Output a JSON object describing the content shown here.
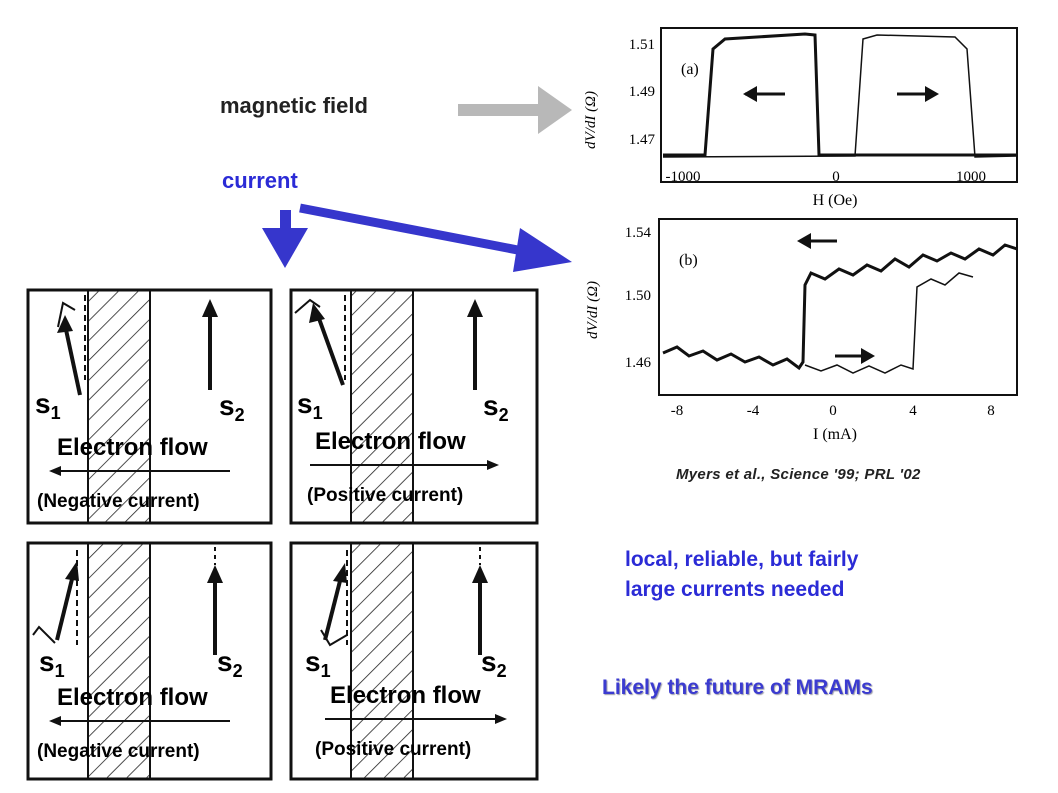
{
  "labels": {
    "magnetic_field": "magnetic field",
    "current": "current"
  },
  "citation": "Myers et al., Science '99; PRL '02",
  "note": [
    "local,  reliable, but fairly",
    "large currents needed"
  ],
  "conclusion": "Likely the future of MRAMs",
  "plot_a": {
    "panel_label": "(a)",
    "ylabel": "dV/dI (Ω)",
    "xlabel": "H (Oe)",
    "yticks": [
      "1.51",
      "1.49",
      "1.47"
    ],
    "xticks": [
      "-1000",
      "0",
      "1000"
    ]
  },
  "plot_b": {
    "panel_label": "(b)",
    "ylabel": "dV/dI (Ω)",
    "xlabel": "I (mA)",
    "yticks": [
      "1.54",
      "1.50",
      "1.46"
    ],
    "xticks": [
      "-8",
      "-4",
      "0",
      "4",
      "8"
    ]
  },
  "panels": [
    {
      "s1": "s",
      "s1_sub": "1",
      "s2": "s",
      "s2_sub": "2",
      "flow": "Electron flow",
      "current": "(Negative current)"
    },
    {
      "s1": "s",
      "s1_sub": "1",
      "s2": "s",
      "s2_sub": "2",
      "flow": "Electron flow",
      "current": "(Positive current)"
    },
    {
      "s1": "s",
      "s1_sub": "1",
      "s2": "s",
      "s2_sub": "2",
      "flow": "Electron flow",
      "current": "(Negative current)"
    },
    {
      "s1": "s",
      "s1_sub": "1",
      "s2": "s",
      "s2_sub": "2",
      "flow": "Electron flow",
      "current": "(Positive current)"
    }
  ],
  "colors": {
    "blue_arrow": "#3636cc",
    "gray_arrow": "#b8b8b8",
    "text_blue": "#2b2bd6"
  }
}
